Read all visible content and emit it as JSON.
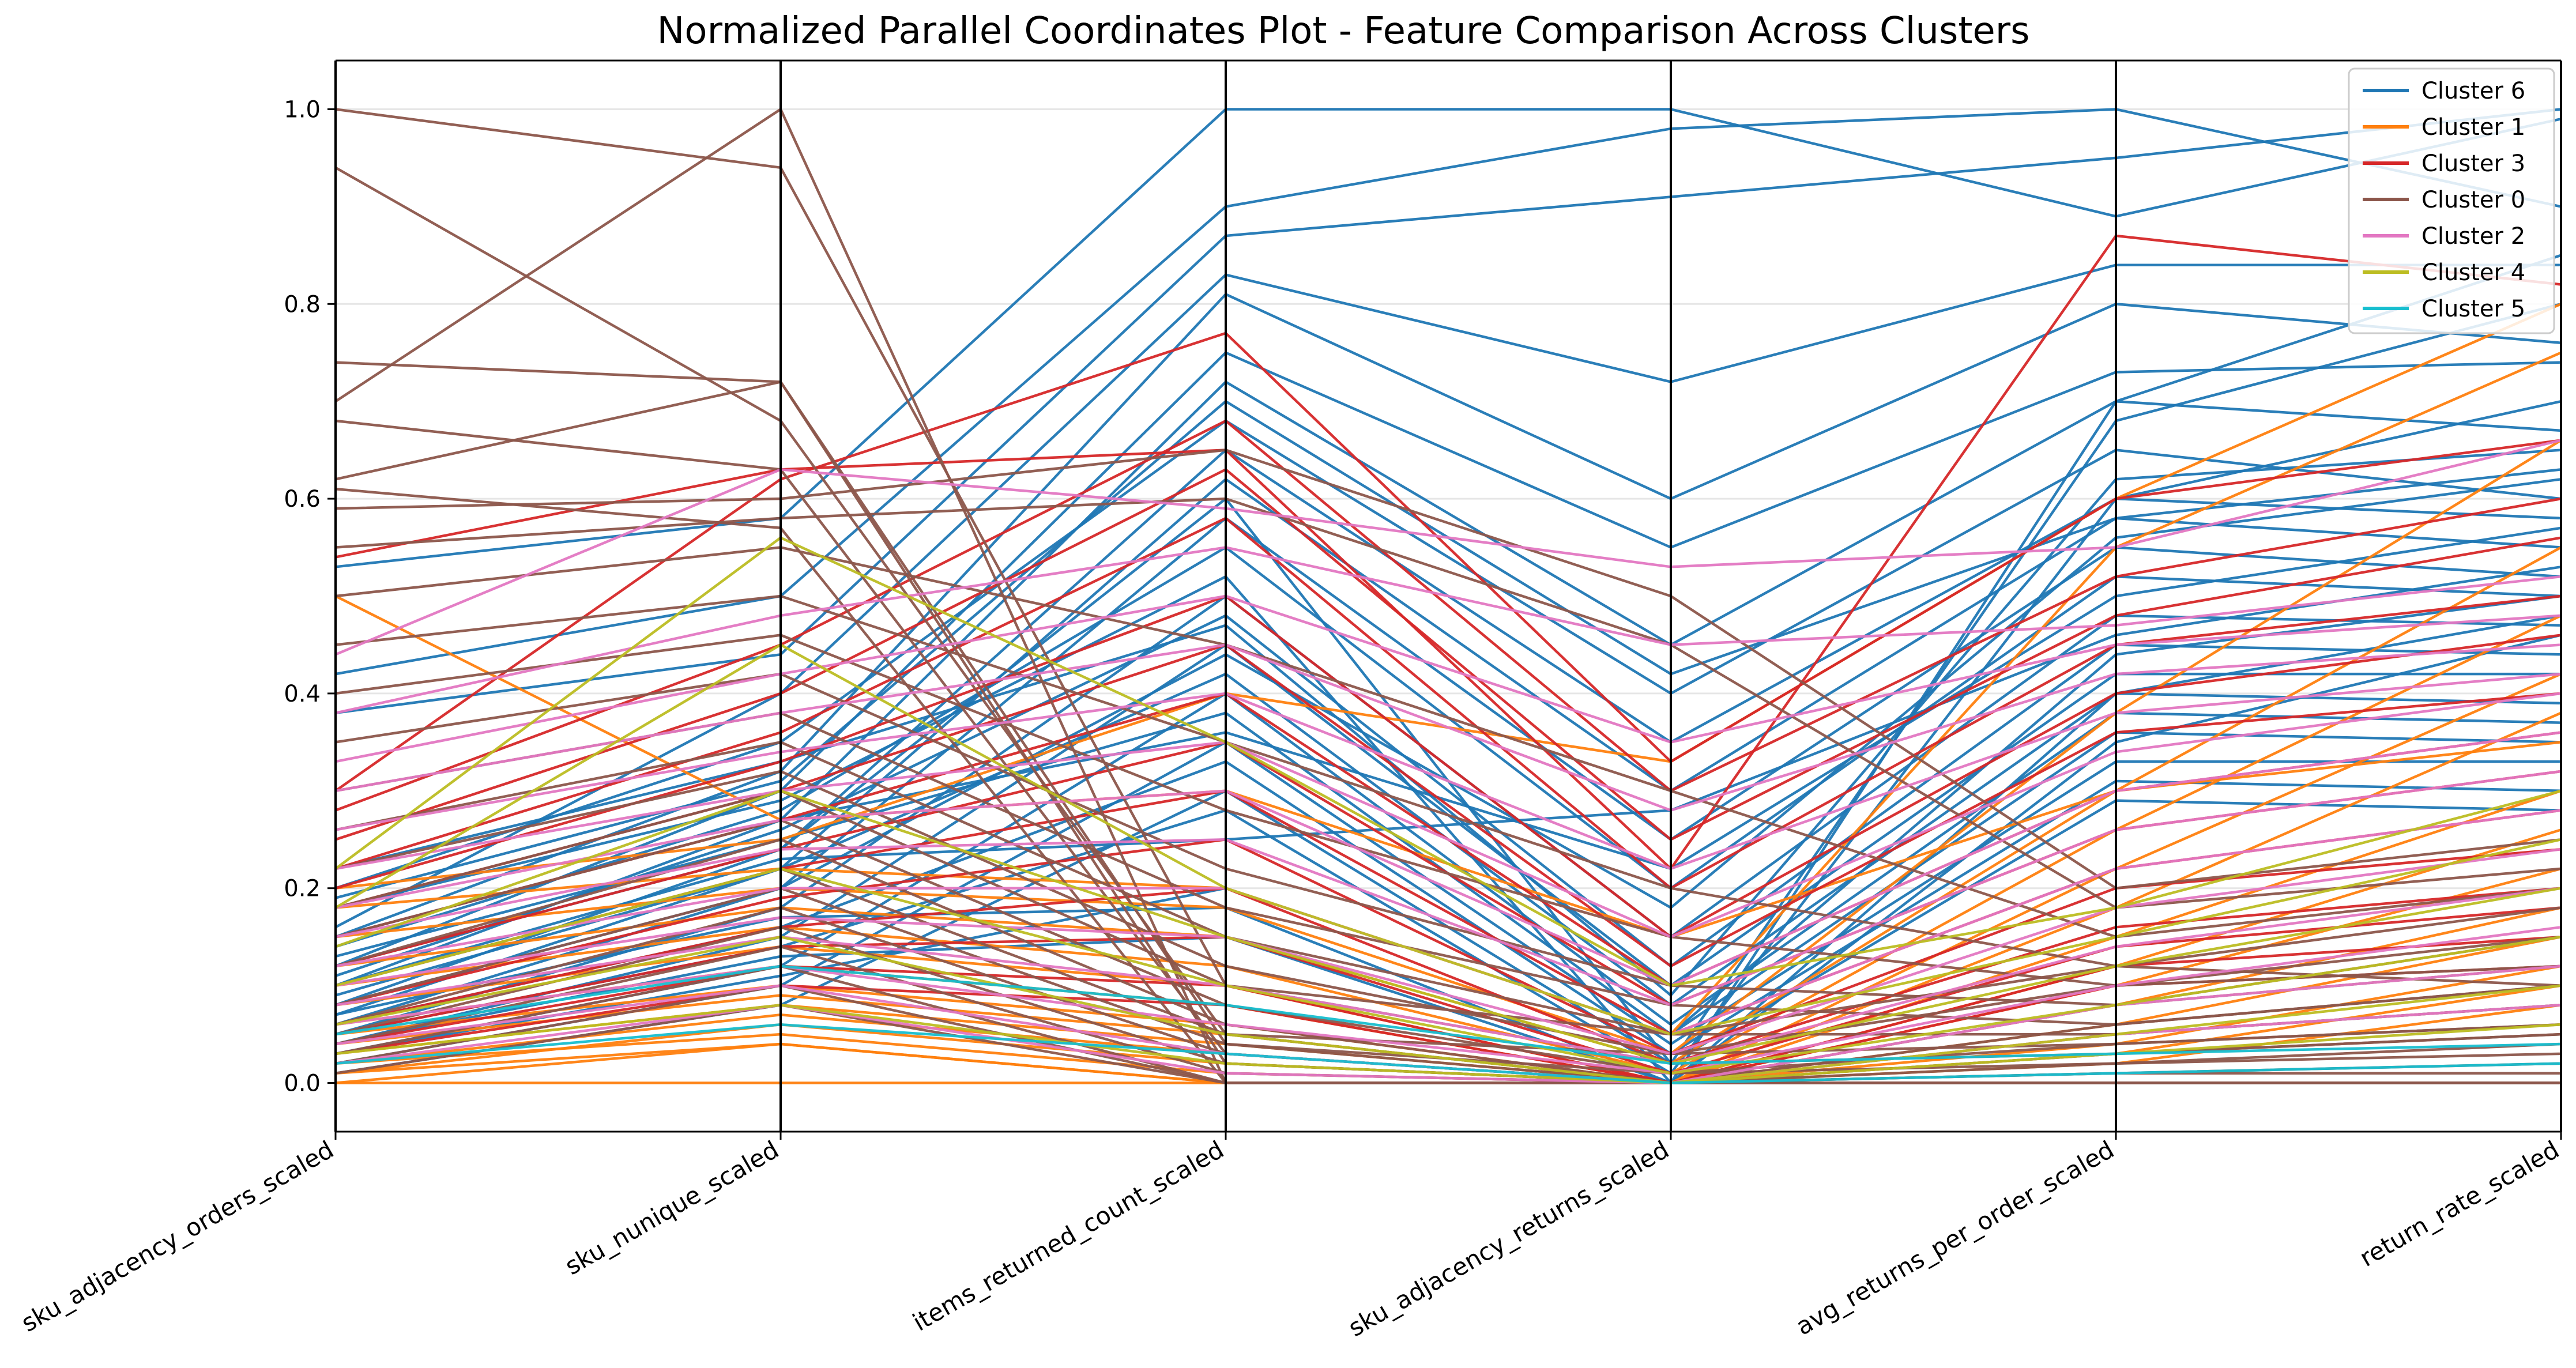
{
  "chart_data": {
    "type": "parallel_coordinates",
    "title": "Normalized Parallel Coordinates Plot - Feature Comparison Across Clusters",
    "axes": [
      "sku_adjacency_orders_scaled",
      "sku_nunique_scaled",
      "items_returned_count_scaled",
      "sku_adjacency_returns_scaled",
      "avg_returns_per_order_scaled",
      "return_rate_scaled"
    ],
    "ylim": [
      -0.05,
      1.05
    ],
    "yticks": [
      "0.0",
      "0.2",
      "0.4",
      "0.6",
      "0.8",
      "1.0"
    ],
    "grid": true,
    "legend_position": "top-right",
    "series": [
      {
        "name": "Cluster 6",
        "color": "#1f77b4",
        "lines": [
          [
            0.53,
            0.58,
            1.0,
            1.0,
            0.89,
            0.99
          ],
          [
            0.42,
            0.5,
            0.9,
            0.98,
            1.0,
            0.9
          ],
          [
            0.38,
            0.44,
            0.87,
            0.91,
            0.95,
            1.0
          ],
          [
            0.16,
            0.4,
            0.83,
            0.72,
            0.84,
            0.84
          ],
          [
            0.15,
            0.32,
            0.81,
            0.6,
            0.8,
            0.76
          ],
          [
            0.12,
            0.3,
            0.75,
            0.55,
            0.73,
            0.74
          ],
          [
            0.1,
            0.27,
            0.72,
            0.45,
            0.7,
            0.67
          ],
          [
            0.2,
            0.35,
            0.68,
            0.4,
            0.65,
            0.6
          ],
          [
            0.08,
            0.24,
            0.65,
            0.35,
            0.6,
            0.58
          ],
          [
            0.07,
            0.22,
            0.62,
            0.3,
            0.58,
            0.55
          ],
          [
            0.06,
            0.2,
            0.58,
            0.25,
            0.55,
            0.52
          ],
          [
            0.14,
            0.28,
            0.55,
            0.2,
            0.52,
            0.5
          ],
          [
            0.05,
            0.18,
            0.5,
            0.15,
            0.48,
            0.47
          ],
          [
            0.11,
            0.26,
            0.48,
            0.12,
            0.45,
            0.44
          ],
          [
            0.04,
            0.15,
            0.45,
            0.1,
            0.42,
            0.42
          ],
          [
            0.09,
            0.22,
            0.42,
            0.08,
            0.4,
            0.39
          ],
          [
            0.03,
            0.12,
            0.4,
            0.06,
            0.38,
            0.37
          ],
          [
            0.13,
            0.25,
            0.38,
            0.05,
            0.36,
            0.35
          ],
          [
            0.02,
            0.1,
            0.35,
            0.04,
            0.33,
            0.33
          ],
          [
            0.06,
            0.16,
            0.33,
            0.03,
            0.31,
            0.3
          ],
          [
            0.01,
            0.08,
            0.3,
            0.02,
            0.29,
            0.28
          ],
          [
            0.05,
            0.14,
            0.28,
            0.01,
            0.6,
            0.7
          ],
          [
            0.18,
            0.29,
            0.52,
            0.0,
            0.7,
            0.85
          ],
          [
            0.12,
            0.24,
            0.6,
            0.02,
            0.68,
            0.8
          ],
          [
            0.22,
            0.33,
            0.47,
            0.09,
            0.62,
            0.65
          ],
          [
            0.08,
            0.2,
            0.44,
            0.18,
            0.56,
            0.62
          ],
          [
            0.15,
            0.27,
            0.36,
            0.22,
            0.5,
            0.57
          ],
          [
            0.1,
            0.23,
            0.25,
            0.28,
            0.46,
            0.53
          ],
          [
            0.03,
            0.11,
            0.2,
            0.05,
            0.44,
            0.5
          ],
          [
            0.07,
            0.17,
            0.18,
            0.0,
            0.35,
            0.46
          ],
          [
            0.04,
            0.13,
            0.15,
            0.0,
            0.4,
            0.48
          ],
          [
            0.19,
            0.31,
            0.7,
            0.42,
            0.58,
            0.63
          ]
        ]
      },
      {
        "name": "Cluster 1",
        "color": "#ff7f0e",
        "lines": [
          [
            0.5,
            0.27,
            0.3,
            0.15,
            0.3,
            0.35
          ],
          [
            0.0,
            0.0,
            0.0,
            0.0,
            0.0,
            0.0
          ],
          [
            0.2,
            0.25,
            0.4,
            0.33,
            0.6,
            0.8
          ],
          [
            0.18,
            0.22,
            0.2,
            0.05,
            0.55,
            0.75
          ],
          [
            0.15,
            0.2,
            0.18,
            0.03,
            0.38,
            0.66
          ],
          [
            0.12,
            0.18,
            0.15,
            0.02,
            0.3,
            0.55
          ],
          [
            0.1,
            0.16,
            0.12,
            0.01,
            0.26,
            0.48
          ],
          [
            0.08,
            0.14,
            0.1,
            0.0,
            0.22,
            0.42
          ],
          [
            0.06,
            0.12,
            0.08,
            0.0,
            0.18,
            0.38
          ],
          [
            0.05,
            0.1,
            0.06,
            0.0,
            0.15,
            0.3
          ],
          [
            0.04,
            0.09,
            0.05,
            0.0,
            0.12,
            0.26
          ],
          [
            0.03,
            0.08,
            0.04,
            0.0,
            0.1,
            0.22
          ],
          [
            0.02,
            0.07,
            0.03,
            0.0,
            0.08,
            0.18
          ],
          [
            0.01,
            0.06,
            0.02,
            0.0,
            0.06,
            0.15
          ],
          [
            0.02,
            0.05,
            0.01,
            0.0,
            0.04,
            0.12
          ],
          [
            0.01,
            0.04,
            0.0,
            0.0,
            0.03,
            0.1
          ],
          [
            0.0,
            0.04,
            0.0,
            0.0,
            0.02,
            0.08
          ]
        ]
      },
      {
        "name": "Cluster 3",
        "color": "#d62728",
        "lines": [
          [
            0.54,
            0.63,
            0.65,
            0.22,
            0.87,
            0.82
          ],
          [
            0.3,
            0.62,
            0.77,
            0.33,
            0.6,
            0.66
          ],
          [
            0.28,
            0.45,
            0.68,
            0.3,
            0.52,
            0.6
          ],
          [
            0.25,
            0.4,
            0.63,
            0.25,
            0.48,
            0.56
          ],
          [
            0.22,
            0.36,
            0.58,
            0.2,
            0.45,
            0.5
          ],
          [
            0.2,
            0.33,
            0.5,
            0.15,
            0.4,
            0.46
          ],
          [
            0.18,
            0.3,
            0.45,
            0.12,
            0.36,
            0.4
          ],
          [
            0.15,
            0.27,
            0.4,
            0.1,
            0.3,
            0.36
          ],
          [
            0.12,
            0.24,
            0.35,
            0.08,
            0.26,
            0.32
          ],
          [
            0.1,
            0.22,
            0.3,
            0.05,
            0.22,
            0.28
          ],
          [
            0.08,
            0.19,
            0.25,
            0.03,
            0.2,
            0.24
          ],
          [
            0.06,
            0.16,
            0.2,
            0.02,
            0.16,
            0.2
          ],
          [
            0.05,
            0.14,
            0.15,
            0.01,
            0.14,
            0.18
          ],
          [
            0.04,
            0.12,
            0.1,
            0.0,
            0.12,
            0.15
          ],
          [
            0.03,
            0.1,
            0.08,
            0.0,
            0.1,
            0.12
          ]
        ]
      },
      {
        "name": "Cluster 0",
        "color": "#8c564b",
        "lines": [
          [
            1.0,
            0.94,
            0.1,
            0.05,
            0.12,
            0.1
          ],
          [
            0.94,
            0.68,
            0.05,
            0.03,
            0.1,
            0.12
          ],
          [
            0.74,
            0.72,
            0.02,
            0.0,
            0.08,
            0.15
          ],
          [
            0.7,
            1.0,
            0.0,
            0.0,
            0.05,
            0.08
          ],
          [
            0.68,
            0.63,
            0.03,
            0.0,
            0.06,
            0.1
          ],
          [
            0.62,
            0.72,
            0.04,
            0.01,
            0.04,
            0.06
          ],
          [
            0.61,
            0.57,
            0.0,
            0.0,
            0.03,
            0.05
          ],
          [
            0.59,
            0.6,
            0.65,
            0.5,
            0.2,
            0.25
          ],
          [
            0.55,
            0.58,
            0.6,
            0.45,
            0.18,
            0.22
          ],
          [
            0.5,
            0.55,
            0.45,
            0.3,
            0.15,
            0.2
          ],
          [
            0.45,
            0.5,
            0.35,
            0.2,
            0.12,
            0.18
          ],
          [
            0.4,
            0.46,
            0.28,
            0.15,
            0.1,
            0.15
          ],
          [
            0.35,
            0.42,
            0.22,
            0.1,
            0.08,
            0.12
          ],
          [
            0.3,
            0.38,
            0.18,
            0.08,
            0.06,
            0.1
          ],
          [
            0.26,
            0.35,
            0.15,
            0.05,
            0.05,
            0.08
          ],
          [
            0.22,
            0.32,
            0.12,
            0.03,
            0.04,
            0.06
          ],
          [
            0.18,
            0.3,
            0.1,
            0.02,
            0.03,
            0.05
          ],
          [
            0.15,
            0.27,
            0.08,
            0.01,
            0.02,
            0.04
          ],
          [
            0.12,
            0.25,
            0.06,
            0.0,
            0.02,
            0.03
          ],
          [
            0.1,
            0.22,
            0.05,
            0.0,
            0.01,
            0.02
          ],
          [
            0.08,
            0.2,
            0.04,
            0.0,
            0.01,
            0.01
          ],
          [
            0.06,
            0.18,
            0.03,
            0.0,
            0.0,
            0.0
          ],
          [
            0.05,
            0.16,
            0.02,
            0.0,
            0.0,
            0.0
          ],
          [
            0.04,
            0.14,
            0.01,
            0.0,
            0.0,
            0.0
          ],
          [
            0.03,
            0.12,
            0.0,
            0.0,
            0.0,
            0.0
          ],
          [
            0.02,
            0.1,
            0.0,
            0.0,
            0.0,
            0.0
          ],
          [
            0.01,
            0.08,
            0.0,
            0.0,
            0.0,
            0.0
          ]
        ]
      },
      {
        "name": "Cluster 2",
        "color": "#e377c2",
        "lines": [
          [
            0.44,
            0.63,
            0.59,
            0.53,
            0.55,
            0.66
          ],
          [
            0.38,
            0.48,
            0.55,
            0.45,
            0.47,
            0.52
          ],
          [
            0.33,
            0.42,
            0.5,
            0.35,
            0.45,
            0.48
          ],
          [
            0.3,
            0.38,
            0.45,
            0.28,
            0.42,
            0.45
          ],
          [
            0.26,
            0.34,
            0.4,
            0.22,
            0.38,
            0.42
          ],
          [
            0.22,
            0.3,
            0.35,
            0.15,
            0.34,
            0.4
          ],
          [
            0.18,
            0.27,
            0.3,
            0.1,
            0.3,
            0.36
          ],
          [
            0.15,
            0.24,
            0.25,
            0.08,
            0.26,
            0.32
          ],
          [
            0.12,
            0.2,
            0.2,
            0.05,
            0.22,
            0.28
          ],
          [
            0.1,
            0.17,
            0.15,
            0.03,
            0.18,
            0.24
          ],
          [
            0.08,
            0.15,
            0.1,
            0.02,
            0.14,
            0.2
          ],
          [
            0.06,
            0.12,
            0.06,
            0.01,
            0.1,
            0.16
          ],
          [
            0.04,
            0.1,
            0.03,
            0.0,
            0.08,
            0.12
          ],
          [
            0.02,
            0.08,
            0.01,
            0.0,
            0.05,
            0.08
          ]
        ]
      },
      {
        "name": "Cluster 4",
        "color": "#bcbd22",
        "lines": [
          [
            0.22,
            0.56,
            0.35,
            0.1,
            0.18,
            0.3
          ],
          [
            0.18,
            0.45,
            0.2,
            0.05,
            0.15,
            0.25
          ],
          [
            0.14,
            0.3,
            0.15,
            0.02,
            0.12,
            0.2
          ],
          [
            0.1,
            0.22,
            0.1,
            0.01,
            0.08,
            0.15
          ],
          [
            0.06,
            0.15,
            0.05,
            0.0,
            0.05,
            0.1
          ],
          [
            0.03,
            0.08,
            0.02,
            0.0,
            0.03,
            0.06
          ]
        ]
      },
      {
        "name": "Cluster 5",
        "color": "#17becf",
        "lines": [
          [
            0.05,
            0.12,
            0.08,
            0.02,
            0.03,
            0.04
          ],
          [
            0.02,
            0.06,
            0.03,
            0.0,
            0.01,
            0.02
          ]
        ]
      }
    ]
  }
}
